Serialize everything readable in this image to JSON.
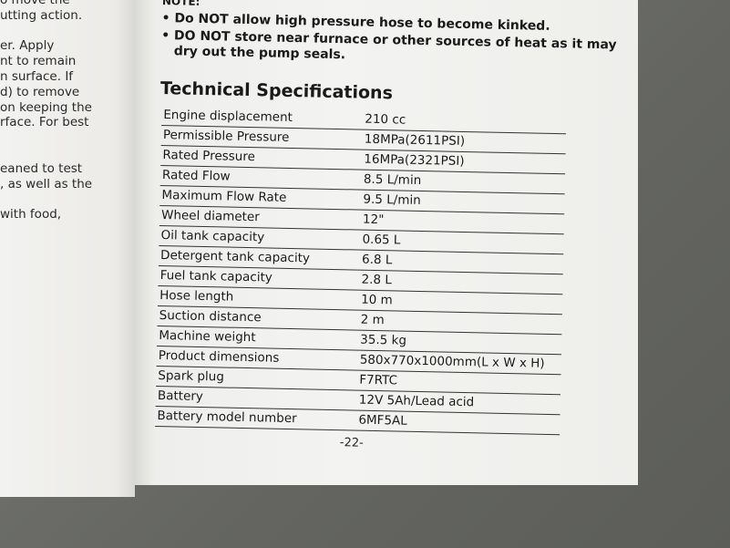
{
  "left_page": {
    "lines": [
      "o move the",
      "utting action.",
      "",
      "er. Apply",
      "nt to remain",
      "n surface. If",
      "d) to remove",
      "on keeping the",
      "rface. For best",
      "",
      "",
      "eaned to test",
      ", as well as the",
      "",
      "with food,"
    ]
  },
  "note": {
    "label": "NOTE:",
    "bullets": [
      "Do NOT allow high pressure hose to become kinked.",
      "DO NOT store near furnace or other sources of heat as it may",
      "dry out the pump seals."
    ]
  },
  "section_title": "Technical Specifications",
  "specs": [
    {
      "k": "Engine displacement",
      "v": "210 cc"
    },
    {
      "k": "Permissible Pressure",
      "v": "18MPa(2611PSI)"
    },
    {
      "k": "Rated Pressure",
      "v": "16MPa(2321PSI)"
    },
    {
      "k": "Rated Flow",
      "v": "8.5 L/min"
    },
    {
      "k": "Maximum Flow Rate",
      "v": "9.5 L/min"
    },
    {
      "k": "Wheel diameter",
      "v": "12\""
    },
    {
      "k": "Oil tank capacity",
      "v": "0.65 L"
    },
    {
      "k": "Detergent tank capacity",
      "v": "6.8 L"
    },
    {
      "k": "Fuel tank capacity",
      "v": "2.8 L"
    },
    {
      "k": "Hose length",
      "v": "10 m"
    },
    {
      "k": "Suction distance",
      "v": "2 m"
    },
    {
      "k": "Machine weight",
      "v": "35.5 kg"
    },
    {
      "k": "Product dimensions",
      "v": "580x770x1000mm(L x W x H)"
    },
    {
      "k": "Spark plug",
      "v": "F7RTC"
    },
    {
      "k": "Battery",
      "v": "12V 5Ah/Lead acid"
    },
    {
      "k": "Battery model number",
      "v": "6MF5AL"
    }
  ],
  "page_number": "-22-"
}
